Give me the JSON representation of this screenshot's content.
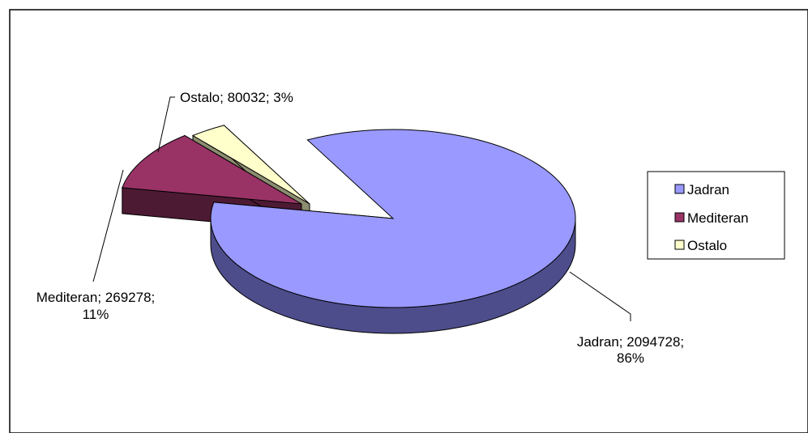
{
  "chart_data": {
    "type": "pie",
    "style": "3d-exploded",
    "title": "",
    "categories": [
      "Jadran",
      "Mediteran",
      "Ostalo"
    ],
    "values": [
      2094728,
      269278,
      80032
    ],
    "percentages": [
      86,
      11,
      3
    ],
    "colors": {
      "Jadran": {
        "top": "#9999FF",
        "side": "#4D4D8C"
      },
      "Mediteran": {
        "top": "#993366",
        "side": "#4D1A33"
      },
      "Ostalo": {
        "top": "#FFFFCC",
        "side": "#8C8C70"
      }
    },
    "legend": {
      "placement": "right",
      "items": [
        {
          "label": "Jadran",
          "color": "#9999FF"
        },
        {
          "label": "Mediteran",
          "color": "#993366"
        },
        {
          "label": "Ostalo",
          "color": "#FFFFCC"
        }
      ]
    },
    "data_labels": [
      {
        "category": "Jadran",
        "line1": "Jadran; 2094728;",
        "line2": "86%"
      },
      {
        "category": "Mediteran",
        "line1": "Mediteran; 269278;",
        "line2": "11%"
      },
      {
        "category": "Ostalo",
        "line1": "Ostalo; 80032; 3%",
        "line2": ""
      }
    ]
  }
}
